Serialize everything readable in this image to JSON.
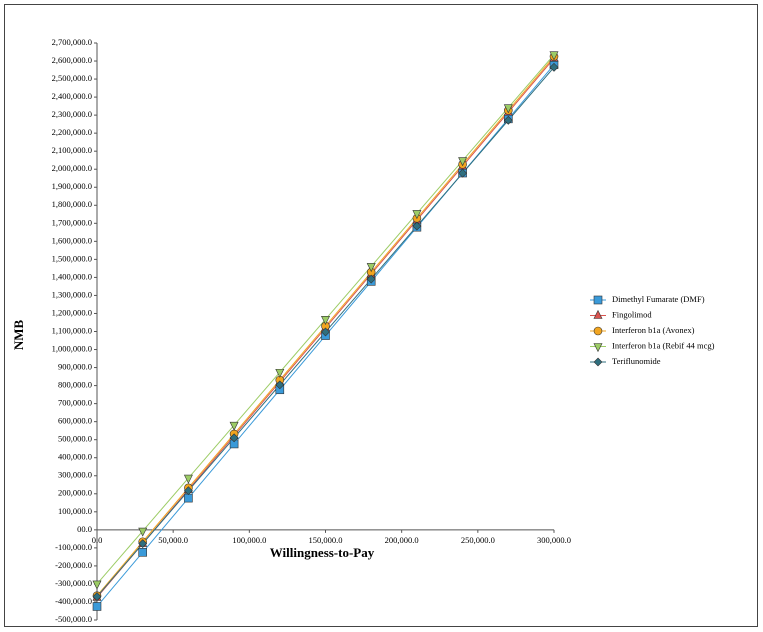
{
  "chart_data": {
    "type": "line",
    "x_label": "Willingness-to-Pay",
    "y_label": "NMB",
    "x": [
      0,
      30000,
      60000,
      90000,
      120000,
      150000,
      180000,
      210000,
      240000,
      270000,
      300000
    ],
    "series": [
      {
        "name": "Dimethyl Fumarate (DMF)",
        "color": "#3a9ad9",
        "marker": "square",
        "values": [
          -425000,
          -124500,
          176000,
          476500,
          777000,
          1077500,
          1378000,
          1678500,
          1979000,
          2279500,
          2580000
        ]
      },
      {
        "name": "Fingolimod",
        "color": "#d9534f",
        "marker": "triangle",
        "values": [
          -375000,
          -76000,
          223000,
          522000,
          821000,
          1120000,
          1419000,
          1718000,
          2017000,
          2316000,
          2615000
        ]
      },
      {
        "name": "Interferon b1a (Avonex)",
        "color": "#f2a51f",
        "marker": "circle",
        "values": [
          -365000,
          -66000,
          233000,
          532000,
          831000,
          1130000,
          1429000,
          1728000,
          2027000,
          2326000,
          2625000
        ]
      },
      {
        "name": "Interferon b1a (Rebif 44 mcg)",
        "color": "#9ccc65",
        "marker": "triangle-down",
        "values": [
          -300000,
          -6500,
          287000,
          580500,
          874000,
          1167500,
          1461000,
          1754500,
          2048000,
          2341500,
          2635000
        ]
      },
      {
        "name": "Teriflunomide",
        "color": "#2f6f7f",
        "marker": "diamond",
        "values": [
          -370000,
          -76500,
          217000,
          510500,
          804000,
          1097500,
          1391000,
          1684500,
          1978000,
          2271500,
          2565000
        ]
      }
    ],
    "xlim": [
      0,
      300000
    ],
    "xticks": [
      {
        "value": 0,
        "label": "0.0"
      },
      {
        "value": 50000,
        "label": "50,000.0"
      },
      {
        "value": 100000,
        "label": "100,000.0"
      },
      {
        "value": 150000,
        "label": "150,000.0"
      },
      {
        "value": 200000,
        "label": "200,000.0"
      },
      {
        "value": 250000,
        "label": "250,000.0"
      },
      {
        "value": 300000,
        "label": "300,000.0"
      }
    ],
    "ylim": [
      -500000,
      2700000
    ],
    "yticks": [
      {
        "value": -500000,
        "label": "-500,000.0"
      },
      {
        "value": -400000,
        "label": "-400,000.0"
      },
      {
        "value": -300000,
        "label": "-300,000.0"
      },
      {
        "value": -200000,
        "label": "-200,000.0"
      },
      {
        "value": -100000,
        "label": "-100,000.0"
      },
      {
        "value": 0,
        "label": "00.0"
      },
      {
        "value": 100000,
        "label": "100,000.0"
      },
      {
        "value": 200000,
        "label": "200,000.0"
      },
      {
        "value": 300000,
        "label": "300,000.0"
      },
      {
        "value": 400000,
        "label": "400,000.0"
      },
      {
        "value": 500000,
        "label": "500,000.0"
      },
      {
        "value": 600000,
        "label": "600,000.0"
      },
      {
        "value": 700000,
        "label": "700,000.0"
      },
      {
        "value": 800000,
        "label": "800,000.0"
      },
      {
        "value": 900000,
        "label": "900,000.0"
      },
      {
        "value": 1000000,
        "label": "1,000,000.0"
      },
      {
        "value": 1100000,
        "label": "1,100,000.0"
      },
      {
        "value": 1200000,
        "label": "1,200,000.0"
      },
      {
        "value": 1300000,
        "label": "1,300,000.0"
      },
      {
        "value": 1400000,
        "label": "1,400,000.0"
      },
      {
        "value": 1500000,
        "label": "1,500,000.0"
      },
      {
        "value": 1600000,
        "label": "1,600,000.0"
      },
      {
        "value": 1700000,
        "label": "1,700,000.0"
      },
      {
        "value": 1800000,
        "label": "1,800,000.0"
      },
      {
        "value": 1900000,
        "label": "1,900,000.0"
      },
      {
        "value": 2000000,
        "label": "2,000,000.0"
      },
      {
        "value": 2100000,
        "label": "2,100,000.0"
      },
      {
        "value": 2200000,
        "label": "2,200,000.0"
      },
      {
        "value": 2300000,
        "label": "2,300,000.0"
      },
      {
        "value": 2400000,
        "label": "2,400,000.0"
      },
      {
        "value": 2500000,
        "label": "2,500,000.0"
      },
      {
        "value": 2600000,
        "label": "2,600,000.0"
      },
      {
        "value": 2700000,
        "label": "2,700,000.0"
      }
    ],
    "grid": false,
    "legend": "right"
  }
}
